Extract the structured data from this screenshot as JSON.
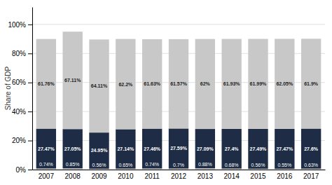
{
  "chart_data": {
    "type": "bar",
    "stacked": true,
    "data_labels": true,
    "grid": true,
    "y_label": "Share of GDP",
    "categories": [
      "2007",
      "2008",
      "2009",
      "2010",
      "2011",
      "2012",
      "2013",
      "2014",
      "2015",
      "2016",
      "2017"
    ],
    "series": [
      {
        "color": "#c8c8c8",
        "values": [
          0.74,
          0.85,
          0.56,
          0.65,
          0.74,
          0.7,
          0.88,
          0.68,
          0.56,
          0.55,
          0.63
        ],
        "value_labels": [
          "0.74%",
          "0.85%",
          "0.56%",
          "0.65%",
          "0.74%",
          "0.7%",
          "0.88%",
          "0.68%",
          "0.56%",
          "0.55%",
          "0.63%"
        ]
      },
      {
        "color": "#1e2d45",
        "values": [
          27.47,
          27.05,
          24.95,
          27.14,
          27.46,
          27.59,
          27.09,
          27.4,
          27.49,
          27.47,
          27.6
        ],
        "value_labels": [
          "27.47%",
          "27.05%",
          "24.95%",
          "27.14%",
          "27.46%",
          "27.59%",
          "27.09%",
          "27.4%",
          "27.49%",
          "27.47%",
          "27.6%"
        ]
      },
      {
        "color": "#c8c8c8",
        "values": [
          61.76,
          67.11,
          64.11,
          62.2,
          61.63,
          61.57,
          62.0,
          61.93,
          61.99,
          62.05,
          61.9
        ],
        "value_labels": [
          "61.76%",
          "67.11%",
          "64.11%",
          "62.2%",
          "61.63%",
          "61.57%",
          "62%",
          "61.93%",
          "61.99%",
          "62.05%",
          "61.9%"
        ]
      }
    ],
    "ylim": [
      0,
      112
    ],
    "yticks": [
      {
        "value": 0,
        "label": "0%"
      },
      {
        "value": 20,
        "label": "20%"
      },
      {
        "value": 40,
        "label": "40%"
      },
      {
        "value": 60,
        "label": "60%"
      },
      {
        "value": 80,
        "label": "80%"
      },
      {
        "value": 100,
        "label": "100%"
      }
    ]
  }
}
